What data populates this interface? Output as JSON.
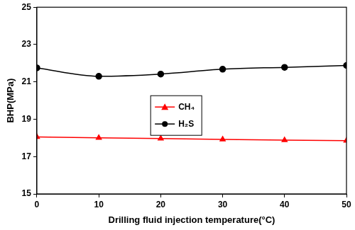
{
  "chart_data": {
    "type": "line",
    "x_label": "Drilling fluid injection temperature(°C)",
    "y_label": "BHP(MPa)",
    "x": [
      0,
      10,
      20,
      30,
      40,
      50
    ],
    "series": [
      {
        "name": "CH₄",
        "color": "#ff0000",
        "marker": "triangle",
        "line_style": "solid",
        "values": [
          18.05,
          18.0,
          17.97,
          17.92,
          17.88,
          17.85
        ]
      },
      {
        "name": "H₂S",
        "color": "#000000",
        "marker": "circle",
        "line_style": "smooth",
        "values": [
          21.75,
          21.3,
          21.42,
          21.68,
          21.78,
          21.88
        ]
      }
    ],
    "xlim": [
      0,
      50
    ],
    "xticks": [
      0,
      10,
      20,
      30,
      40,
      50
    ],
    "ylim": [
      15,
      25
    ],
    "yticks": [
      15,
      17,
      19,
      21,
      23,
      25
    ],
    "grid": false,
    "legend": "center"
  }
}
